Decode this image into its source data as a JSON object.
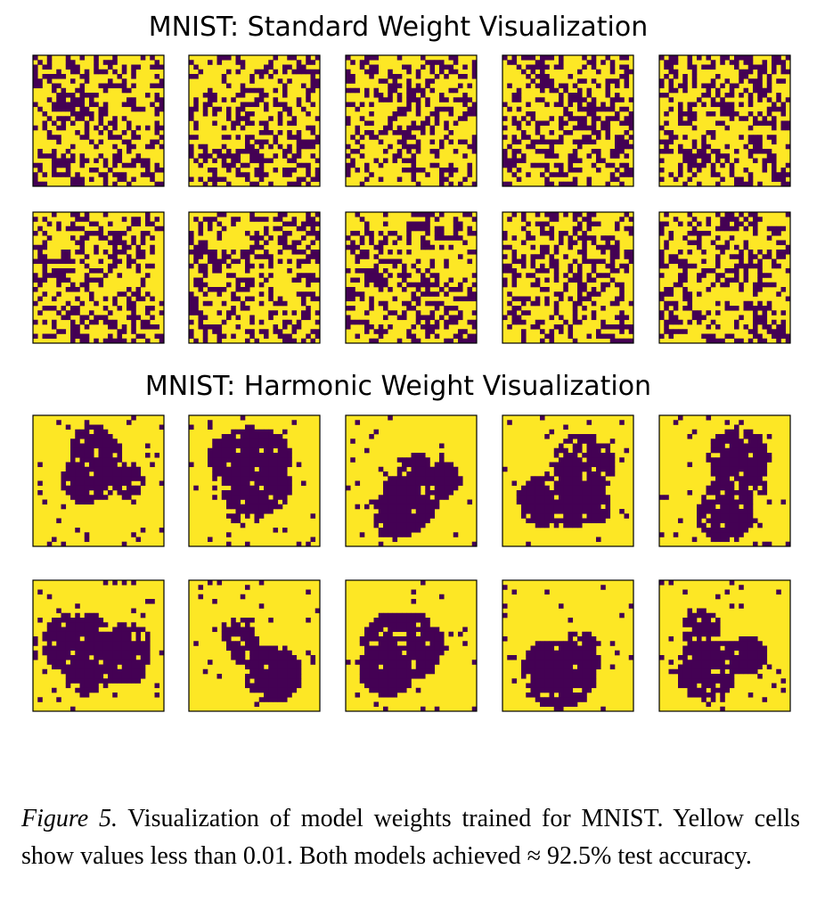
{
  "figure": {
    "titles": [
      "MNIST: Standard Weight Visualization",
      "MNIST: Harmonic Weight Visualization"
    ],
    "caption": {
      "label": "Figure 5.",
      "text": "Visualization of model weights trained for MNIST. Yellow cells show values less than 0.01. Both models achieved ≈ 92.5% test accuracy."
    }
  }
}
